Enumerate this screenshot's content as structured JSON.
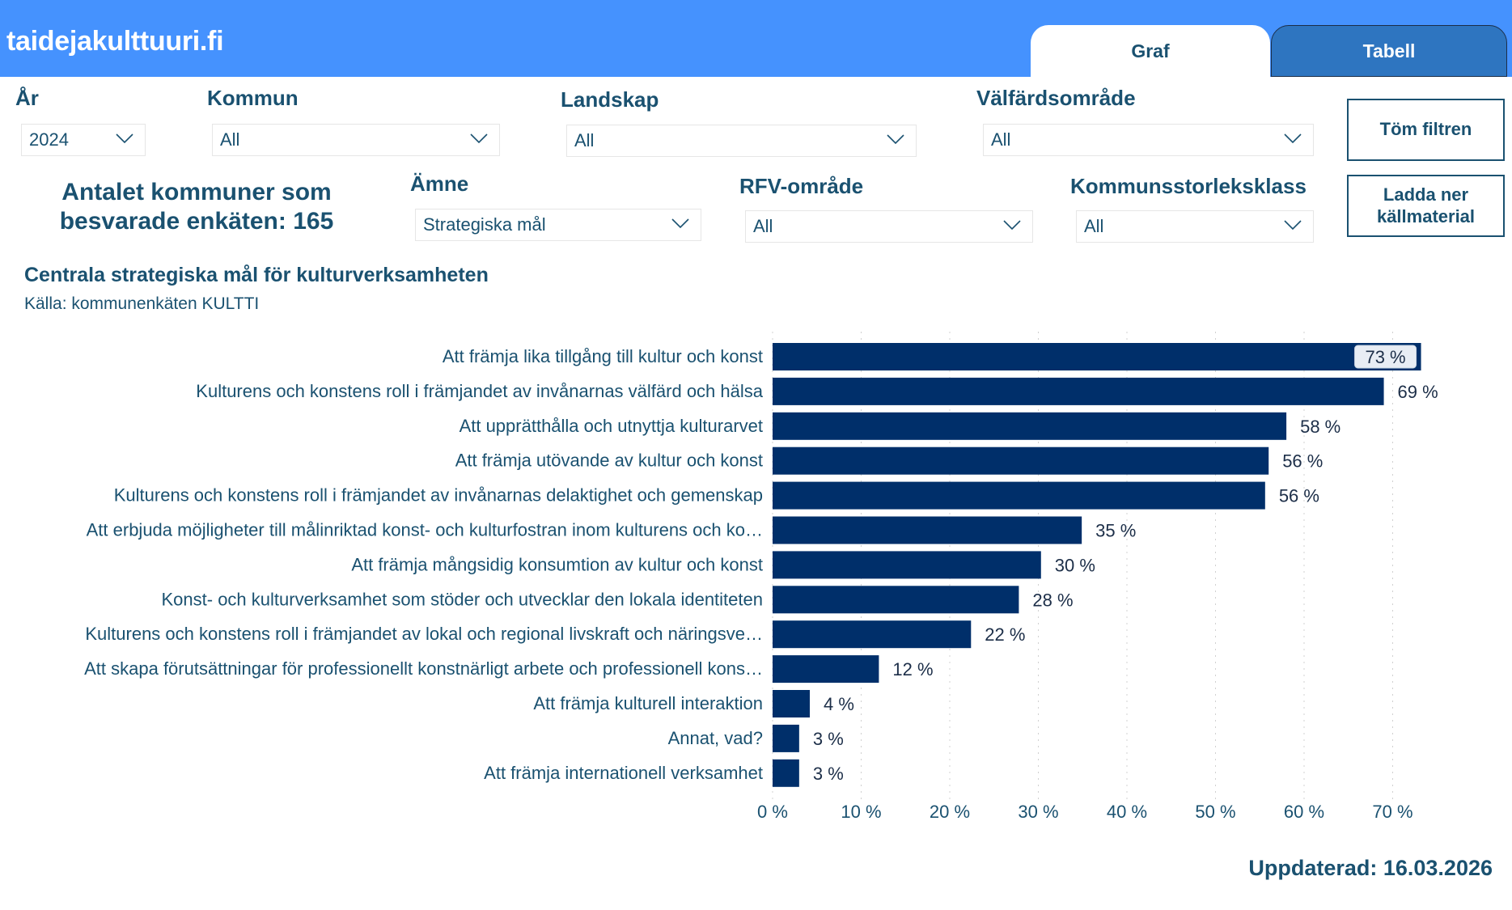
{
  "header": {
    "site_title": "taidejakulttuuri.fi",
    "tabs": [
      {
        "label": "Graf",
        "active": true
      },
      {
        "label": "Tabell",
        "active": false
      }
    ],
    "colors": {
      "header_bg": "#4592fe",
      "tab_inactive_bg": "#2e75c0",
      "text": "#1a5170",
      "bar": "#002f6a"
    }
  },
  "filters": {
    "year": {
      "label": "År",
      "value": "2024"
    },
    "kommun": {
      "label": "Kommun",
      "value": "All"
    },
    "landskap": {
      "label": "Landskap",
      "value": "All"
    },
    "valfardsomrade": {
      "label": "Välfärdsområde",
      "value": "All"
    },
    "amne": {
      "label": "Ämne",
      "value": "Strategiska mål"
    },
    "rfv": {
      "label": "RFV-område",
      "value": "All"
    },
    "storleksklass": {
      "label": "Kommunsstorleksklass",
      "value": "All"
    }
  },
  "buttons": {
    "clear_filters": "Töm filtren",
    "download_line1": "Ladda ner",
    "download_line2": "källmaterial"
  },
  "summary": {
    "line1": "Antalet kommuner som",
    "line2": "besvarade enkäten: 165"
  },
  "chart_data": {
    "type": "bar",
    "orientation": "horizontal",
    "title": "Centrala strategiska mål för kulturverksamheten",
    "subtitle": "Källa: kommunenkäten KULTTI",
    "xlabel": "",
    "ylabel": "",
    "xlim": [
      0,
      73
    ],
    "grid": true,
    "x_ticks": [
      "0 %",
      "10 %",
      "20 %",
      "30 %",
      "40 %",
      "50 %",
      "60 %",
      "70 %"
    ],
    "x_tick_values": [
      0,
      10,
      20,
      30,
      40,
      50,
      60,
      70
    ],
    "categories": [
      "Att främja lika tillgång till kultur och konst",
      "Kulturens och konstens roll i främjandet av invånarnas välfärd och hälsa",
      "Att upprätthålla och utnyttja kulturarvet",
      "Att främja utövande av kultur och konst",
      "Kulturens och konstens roll i främjandet av invånarnas delaktighet och gemenskap",
      "Att erbjuda möjligheter till målinriktad konst- och kulturfostran inom kulturens och ko…",
      "Att främja mångsidig konsumtion av kultur och konst",
      "Konst- och kulturverksamhet som stöder och utvecklar den lokala identiteten",
      "Kulturens och konstens roll i främjandet av lokal och regional livskraft och näringsve…",
      "Att skapa förutsättningar för professionellt konstnärligt arbete och professionell kons…",
      "Att främja kulturell interaktion",
      "Annat, vad?",
      "Att främja internationell verksamhet"
    ],
    "values": [
      73.2,
      69,
      58,
      56,
      55.6,
      34.9,
      30.3,
      27.8,
      22.4,
      12,
      4.2,
      3,
      3
    ],
    "value_labels": [
      "73 %",
      "69 %",
      "58 %",
      "56 %",
      "56 %",
      "35 %",
      "30 %",
      "28 %",
      "22 %",
      "12 %",
      "4 %",
      "3 %",
      "3 %"
    ],
    "highlighted_label_index": 0
  },
  "footer": {
    "updated": "Uppdaterad: 16.03.2026"
  }
}
